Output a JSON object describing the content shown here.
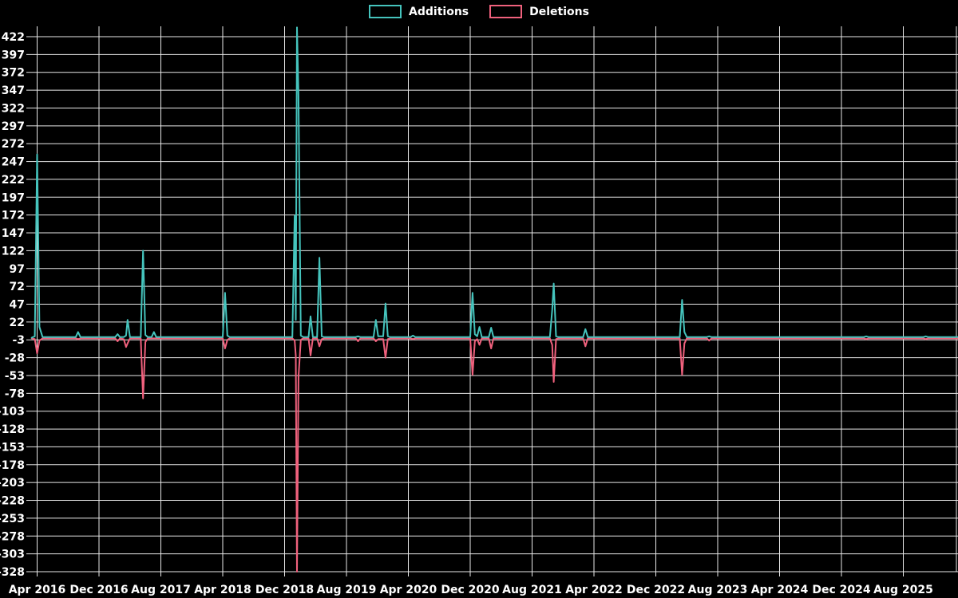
{
  "legend": {
    "additions_label": "Additions",
    "deletions_label": "Deletions"
  },
  "colors": {
    "background": "#000000",
    "grid": "#e8e8e8",
    "text": "#ffffff",
    "additions": "#45c4bd",
    "deletions": "#f0617d"
  },
  "chart_data": {
    "type": "line",
    "title": "",
    "xlabel": "",
    "ylabel": "",
    "grid": true,
    "legend_position": "top-center",
    "x_unit": "months since Apr 2016 (weekly git additions/deletions)",
    "x_tick_step_months": 8,
    "x_tick_labels": [
      "Apr 2016",
      "Dec 2016",
      "Aug 2017",
      "Apr 2018",
      "Dec 2018",
      "Aug 2019",
      "Apr 2020",
      "Dec 2020",
      "Aug 2021",
      "Apr 2022",
      "Dec 2022",
      "Aug 2023",
      "Apr 2024",
      "Dec 2024",
      "Aug 2025"
    ],
    "y_ticks": [
      422,
      397,
      372,
      347,
      322,
      297,
      272,
      247,
      222,
      197,
      172,
      147,
      122,
      97,
      72,
      47,
      22,
      -3,
      -28,
      -53,
      -78,
      -103,
      -128,
      -153,
      -178,
      -203,
      -228,
      -253,
      -278,
      -303,
      -328
    ],
    "ylim": [
      -328,
      435
    ],
    "xlim_months": [
      -0.7,
      119
    ],
    "series": [
      {
        "name": "Additions",
        "color": "#45c4bd",
        "value_index": 1
      },
      {
        "name": "Deletions",
        "color": "#f0617d",
        "value_index": 2
      }
    ],
    "points": [
      [
        -0.7,
        0,
        -1
      ],
      [
        -0.3,
        2,
        -2
      ],
      [
        0,
        257,
        -22
      ],
      [
        0.3,
        15,
        -4
      ],
      [
        0.7,
        1,
        -1
      ],
      [
        5.0,
        1,
        -1
      ],
      [
        5.3,
        8,
        -2
      ],
      [
        5.6,
        1,
        -1
      ],
      [
        10.1,
        1,
        -1
      ],
      [
        10.4,
        5,
        -5
      ],
      [
        10.7,
        1,
        -1
      ],
      [
        11.2,
        1,
        -2
      ],
      [
        11.5,
        3,
        -13
      ],
      [
        11.7,
        25,
        -8
      ],
      [
        12.0,
        1,
        -1
      ],
      [
        13.4,
        1,
        -1
      ],
      [
        13.7,
        122,
        -85
      ],
      [
        14.0,
        4,
        -6
      ],
      [
        14.3,
        1,
        -1
      ],
      [
        14.8,
        1,
        -1
      ],
      [
        15.1,
        8,
        -1
      ],
      [
        15.4,
        1,
        -1
      ],
      [
        24.0,
        1,
        -1
      ],
      [
        24.3,
        63,
        -15
      ],
      [
        24.6,
        3,
        -3
      ],
      [
        24.9,
        1,
        -1
      ],
      [
        33.0,
        1,
        -1
      ],
      [
        33.3,
        171,
        -4
      ],
      [
        33.45,
        25,
        -25
      ],
      [
        33.6,
        435,
        -328
      ],
      [
        33.8,
        340,
        -55
      ],
      [
        34.1,
        3,
        -3
      ],
      [
        34.4,
        1,
        -1
      ],
      [
        35.1,
        1,
        -1
      ],
      [
        35.35,
        30,
        -25
      ],
      [
        35.65,
        1,
        -1
      ],
      [
        36.2,
        1,
        -1
      ],
      [
        36.5,
        112,
        -12
      ],
      [
        36.8,
        2,
        -2
      ],
      [
        37.1,
        1,
        -1
      ],
      [
        41.2,
        1,
        -1
      ],
      [
        41.5,
        2,
        -5
      ],
      [
        41.8,
        1,
        -1
      ],
      [
        43.5,
        1,
        -1
      ],
      [
        43.8,
        25,
        -5
      ],
      [
        44.1,
        2,
        -2
      ],
      [
        44.75,
        2,
        -2
      ],
      [
        45.05,
        48,
        -28
      ],
      [
        45.35,
        2,
        -2
      ],
      [
        45.65,
        1,
        -1
      ],
      [
        48.3,
        1,
        -1
      ],
      [
        48.6,
        3,
        -2
      ],
      [
        48.9,
        1,
        -1
      ],
      [
        56.0,
        1,
        -1
      ],
      [
        56.3,
        63,
        -52
      ],
      [
        56.6,
        5,
        -5
      ],
      [
        56.9,
        2,
        -2
      ],
      [
        57.2,
        15,
        -10
      ],
      [
        57.5,
        1,
        -1
      ],
      [
        58.4,
        1,
        -1
      ],
      [
        58.7,
        14,
        -15
      ],
      [
        59.0,
        1,
        -1
      ],
      [
        66.3,
        1,
        -1
      ],
      [
        66.6,
        39,
        -10
      ],
      [
        66.8,
        76,
        -62
      ],
      [
        67.1,
        2,
        -2
      ],
      [
        67.4,
        1,
        -1
      ],
      [
        70.6,
        1,
        -1
      ],
      [
        70.9,
        12,
        -12
      ],
      [
        71.2,
        1,
        -1
      ],
      [
        83.1,
        1,
        -1
      ],
      [
        83.4,
        53,
        -52
      ],
      [
        83.7,
        8,
        -8
      ],
      [
        84.0,
        1,
        -1
      ],
      [
        86.6,
        1,
        -1
      ],
      [
        86.9,
        2,
        -4
      ],
      [
        87.2,
        1,
        -1
      ],
      [
        106.9,
        1,
        -1
      ],
      [
        107.2,
        2,
        -2
      ],
      [
        107.5,
        1,
        -1
      ],
      [
        114.6,
        1,
        -1
      ],
      [
        114.9,
        2,
        -2
      ],
      [
        115.2,
        1,
        -1
      ],
      [
        119.0,
        1,
        -1
      ]
    ]
  }
}
